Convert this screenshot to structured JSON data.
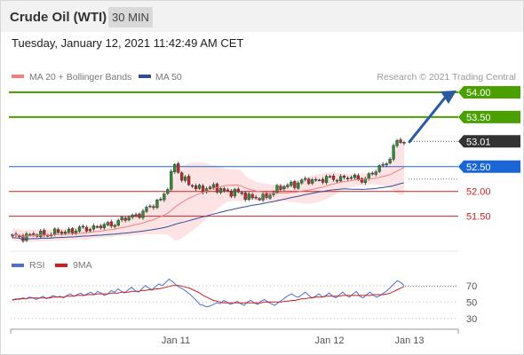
{
  "header": {
    "title": "Crude Oil (WTI)",
    "timeframe": "30 MIN"
  },
  "timestamp": "Tuesday, January 12, 2021 11:42:49 AM CET",
  "copyright": "Research © 2021 Trading Central",
  "colors": {
    "resistance": "#4aa000",
    "support": "#cc2222",
    "pivot": "#1a66d6",
    "current": "#333333",
    "ma20": "#f08080",
    "ma50": "#334c99",
    "bull": "#2f8f2f",
    "bear": "#c82828",
    "rsi": "#4a6fd6",
    "rsi_ma": "#cc1f1f",
    "arrow": "#2a5aa0"
  },
  "chart_data": [
    {
      "type": "candlestick",
      "legend": [
        "MA 20 + Bollinger Bands",
        "MA 50"
      ],
      "ylim": [
        50.85,
        54.25
      ],
      "x_ticks": [
        "Jan 11",
        "Jan 12",
        "Jan 13"
      ],
      "levels": [
        {
          "value": 54.0,
          "label": "54.00",
          "kind": "resistance"
        },
        {
          "value": 53.5,
          "label": "53.50",
          "kind": "resistance"
        },
        {
          "value": 53.01,
          "label": "53.01",
          "kind": "current"
        },
        {
          "value": 52.5,
          "label": "52.50",
          "kind": "pivot"
        },
        {
          "value": 52.0,
          "label": "52.00",
          "kind": "support"
        },
        {
          "value": 51.5,
          "label": "51.50",
          "kind": "support"
        }
      ],
      "arrow": {
        "from_value": 53.0,
        "to_value": 54.0
      }
    },
    {
      "type": "line",
      "legend": [
        "RSI",
        "9MA"
      ],
      "ylim": [
        20,
        85
      ],
      "y_ticks": [
        70,
        50,
        30
      ],
      "rsi": [
        52,
        54,
        53,
        55,
        54,
        56,
        55,
        53,
        55,
        57,
        54,
        56,
        58,
        56,
        57,
        55,
        58,
        60,
        57,
        59,
        61,
        58,
        60,
        62,
        59,
        63,
        61,
        58,
        60,
        64,
        62,
        66,
        63,
        61,
        65,
        68,
        64,
        62,
        66,
        70,
        67,
        65,
        69,
        72,
        70,
        74,
        78,
        75,
        71,
        68,
        66,
        63,
        60,
        56,
        52,
        47,
        46,
        44,
        45,
        47,
        49,
        48,
        52,
        50,
        47,
        49,
        51,
        48,
        46,
        50,
        52,
        49,
        47,
        51,
        53,
        50,
        48,
        46,
        49,
        52,
        55,
        58,
        60,
        57,
        56,
        59,
        62,
        58,
        55,
        57,
        60,
        56,
        58,
        61,
        57,
        55,
        59,
        62,
        58,
        56,
        60,
        63,
        57,
        55,
        59,
        62,
        58,
        56,
        58,
        61,
        64,
        68,
        72,
        76,
        74,
        70
      ],
      "rsi_ma": [
        53,
        53,
        54,
        54,
        54,
        55,
        55,
        55,
        55,
        55,
        55,
        55,
        56,
        56,
        56,
        56,
        57,
        57,
        57,
        58,
        58,
        58,
        59,
        59,
        59,
        60,
        60,
        60,
        60,
        61,
        61,
        61,
        62,
        62,
        62,
        63,
        63,
        63,
        64,
        64,
        65,
        65,
        66,
        66,
        67,
        68,
        69,
        70,
        70,
        70,
        69,
        68,
        67,
        65,
        63,
        61,
        58,
        56,
        54,
        52,
        51,
        50,
        49,
        49,
        49,
        49,
        49,
        49,
        49,
        49,
        49,
        49,
        49,
        49,
        50,
        50,
        50,
        50,
        50,
        50,
        51,
        51,
        52,
        52,
        53,
        54,
        54,
        55,
        55,
        56,
        56,
        56,
        57,
        57,
        57,
        57,
        57,
        58,
        58,
        58,
        58,
        58,
        58,
        58,
        58,
        58,
        59,
        59,
        59,
        59,
        60,
        61,
        63,
        65,
        67,
        69
      ]
    }
  ]
}
